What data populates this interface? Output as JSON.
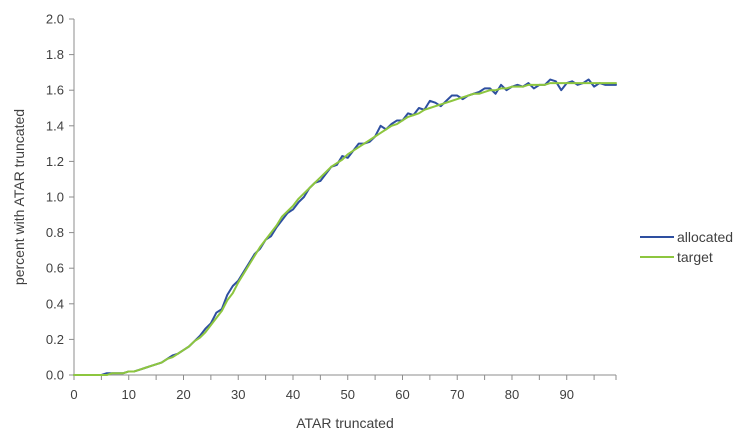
{
  "chart_data": {
    "type": "line",
    "title": "",
    "xlabel": "ATAR truncated",
    "ylabel": "percent with ATAR truncated",
    "xlim": [
      0,
      99
    ],
    "ylim": [
      0,
      2.0
    ],
    "x_ticks": [
      0,
      10,
      20,
      30,
      40,
      50,
      60,
      70,
      80,
      90
    ],
    "x_tick_labels": [
      "0",
      "10",
      "20",
      "30",
      "40",
      "50",
      "60",
      "70",
      "80",
      "90"
    ],
    "y_ticks": [
      0,
      0.2,
      0.4,
      0.6,
      0.8,
      1.0,
      1.2,
      1.4,
      1.6,
      1.8,
      2.0
    ],
    "y_tick_labels": [
      "0.0",
      "0.2",
      "0.4",
      "0.6",
      "0.8",
      "1.0",
      "1.2",
      "1.4",
      "1.6",
      "1.8",
      "2.0"
    ],
    "grid": false,
    "legend_position": "right",
    "x": [
      0,
      1,
      2,
      3,
      4,
      5,
      6,
      7,
      8,
      9,
      10,
      11,
      12,
      13,
      14,
      15,
      16,
      17,
      18,
      19,
      20,
      21,
      22,
      23,
      24,
      25,
      26,
      27,
      28,
      29,
      30,
      31,
      32,
      33,
      34,
      35,
      36,
      37,
      38,
      39,
      40,
      41,
      42,
      43,
      44,
      45,
      46,
      47,
      48,
      49,
      50,
      51,
      52,
      53,
      54,
      55,
      56,
      57,
      58,
      59,
      60,
      61,
      62,
      63,
      64,
      65,
      66,
      67,
      68,
      69,
      70,
      71,
      72,
      73,
      74,
      75,
      76,
      77,
      78,
      79,
      80,
      81,
      82,
      83,
      84,
      85,
      86,
      87,
      88,
      89,
      90,
      91,
      92,
      93,
      94,
      95,
      96,
      97,
      98,
      99
    ],
    "series": [
      {
        "name": "allocated",
        "color": "#2e4fa0",
        "values": [
          0.0,
          0.0,
          0.0,
          0.0,
          0.0,
          0.0,
          0.01,
          0.01,
          0.01,
          0.01,
          0.02,
          0.02,
          0.03,
          0.04,
          0.05,
          0.06,
          0.07,
          0.09,
          0.11,
          0.12,
          0.14,
          0.16,
          0.19,
          0.22,
          0.26,
          0.29,
          0.35,
          0.37,
          0.45,
          0.5,
          0.53,
          0.58,
          0.63,
          0.68,
          0.71,
          0.76,
          0.78,
          0.83,
          0.87,
          0.91,
          0.93,
          0.97,
          1.0,
          1.05,
          1.08,
          1.09,
          1.13,
          1.17,
          1.18,
          1.23,
          1.22,
          1.26,
          1.3,
          1.3,
          1.31,
          1.34,
          1.4,
          1.38,
          1.41,
          1.43,
          1.43,
          1.47,
          1.46,
          1.5,
          1.49,
          1.54,
          1.53,
          1.51,
          1.54,
          1.57,
          1.57,
          1.55,
          1.57,
          1.58,
          1.59,
          1.61,
          1.61,
          1.58,
          1.63,
          1.6,
          1.62,
          1.63,
          1.62,
          1.64,
          1.61,
          1.63,
          1.63,
          1.66,
          1.65,
          1.6,
          1.64,
          1.65,
          1.63,
          1.64,
          1.66,
          1.62,
          1.64,
          1.63,
          1.63,
          1.63
        ]
      },
      {
        "name": "target",
        "color": "#8dc63f",
        "values": [
          0.0,
          0.0,
          0.0,
          0.0,
          0.0,
          0.0,
          0.0,
          0.01,
          0.01,
          0.01,
          0.02,
          0.02,
          0.03,
          0.04,
          0.05,
          0.06,
          0.07,
          0.09,
          0.1,
          0.12,
          0.14,
          0.16,
          0.19,
          0.21,
          0.24,
          0.28,
          0.32,
          0.36,
          0.42,
          0.46,
          0.52,
          0.57,
          0.62,
          0.67,
          0.72,
          0.76,
          0.8,
          0.84,
          0.89,
          0.92,
          0.95,
          0.99,
          1.02,
          1.05,
          1.08,
          1.11,
          1.14,
          1.17,
          1.19,
          1.21,
          1.24,
          1.26,
          1.28,
          1.3,
          1.32,
          1.34,
          1.36,
          1.38,
          1.4,
          1.41,
          1.43,
          1.45,
          1.46,
          1.47,
          1.49,
          1.5,
          1.51,
          1.52,
          1.53,
          1.54,
          1.55,
          1.56,
          1.57,
          1.58,
          1.58,
          1.59,
          1.6,
          1.6,
          1.61,
          1.61,
          1.62,
          1.62,
          1.62,
          1.63,
          1.63,
          1.63,
          1.63,
          1.64,
          1.64,
          1.64,
          1.64,
          1.64,
          1.64,
          1.64,
          1.64,
          1.64,
          1.64,
          1.64,
          1.64,
          1.64
        ]
      }
    ]
  }
}
